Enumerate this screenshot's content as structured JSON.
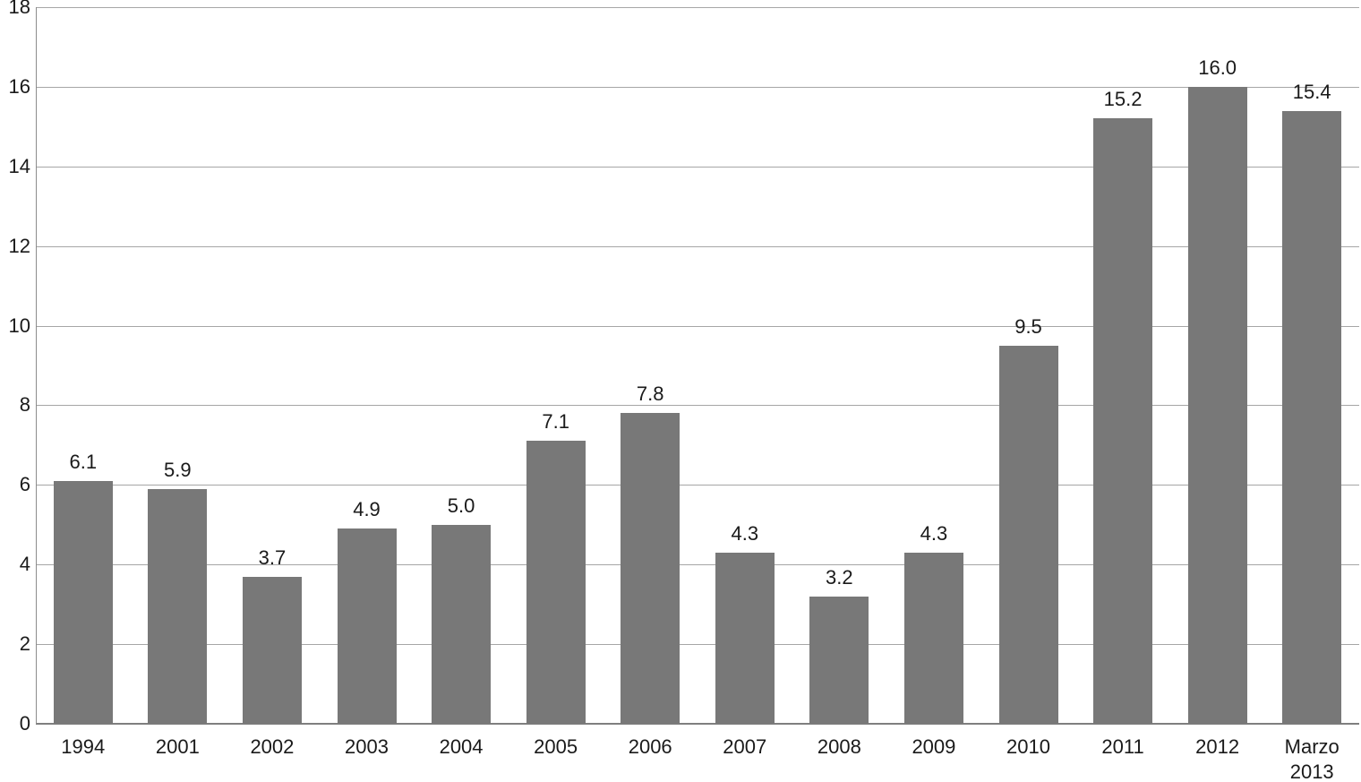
{
  "chart_data": {
    "type": "bar",
    "categories": [
      "1994",
      "2001",
      "2002",
      "2003",
      "2004",
      "2005",
      "2006",
      "2007",
      "2008",
      "2009",
      "2010",
      "2011",
      "2012",
      "Marzo 2013"
    ],
    "values": [
      6.1,
      5.9,
      3.7,
      4.9,
      5.0,
      7.1,
      7.8,
      4.3,
      3.2,
      4.3,
      9.5,
      15.2,
      16.0,
      15.4
    ],
    "value_labels": [
      "6.1",
      "5.9",
      "3.7",
      "4.9",
      "5.0",
      "7.1",
      "7.8",
      "4.3",
      "3.2",
      "4.3",
      "9.5",
      "15.2",
      "16.0",
      "15.4"
    ],
    "title": "",
    "xlabel": "",
    "ylabel": "",
    "ylim": [
      0,
      18
    ],
    "yticks": [
      0,
      2,
      4,
      6,
      8,
      10,
      12,
      14,
      16,
      18
    ],
    "grid": true,
    "legend": "none",
    "bar_color": "#787878",
    "gridline_color": "#a6a6a6",
    "axis_color": "#7f7f7f",
    "text_color": "#1a1a1a",
    "background": "#ffffff"
  }
}
